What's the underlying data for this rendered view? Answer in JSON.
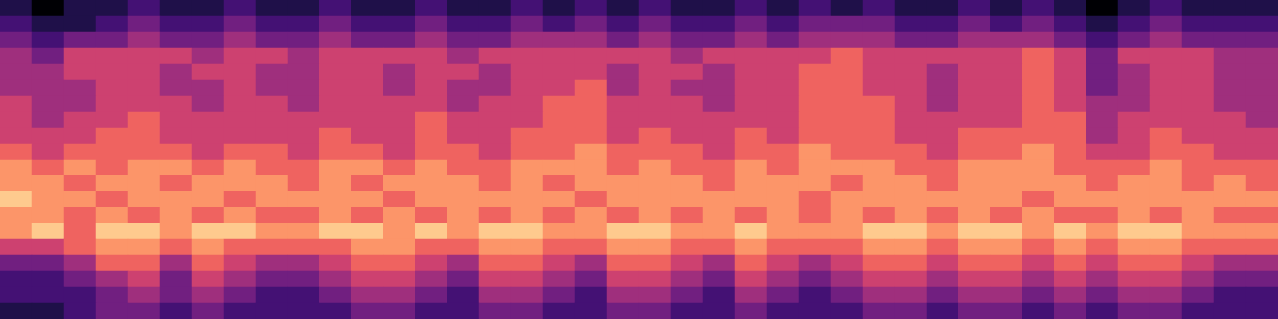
{
  "chart_data": {
    "type": "heatmap",
    "tick_labels": false,
    "value_range": [
      0,
      9
    ],
    "cells": [
      [
        1,
        0,
        1,
        1,
        2,
        1,
        1,
        2,
        1,
        1,
        2,
        1,
        1,
        2,
        1,
        1,
        2,
        1,
        2,
        1,
        2,
        1,
        1,
        2,
        1,
        2,
        1,
        2,
        1,
        1,
        2,
        1,
        2,
        1,
        0,
        1,
        2,
        1,
        1,
        1
      ],
      [
        2,
        1,
        1,
        2,
        3,
        2,
        2,
        3,
        2,
        2,
        3,
        2,
        2,
        3,
        2,
        2,
        3,
        2,
        3,
        2,
        3,
        2,
        2,
        3,
        2,
        3,
        3,
        3,
        2,
        2,
        3,
        2,
        3,
        2,
        1,
        2,
        3,
        2,
        2,
        2
      ],
      [
        3,
        2,
        3,
        3,
        4,
        3,
        3,
        4,
        3,
        3,
        4,
        3,
        3,
        4,
        3,
        3,
        4,
        4,
        4,
        3,
        4,
        3,
        3,
        4,
        3,
        4,
        4,
        4,
        3,
        3,
        4,
        4,
        4,
        3,
        2,
        3,
        4,
        3,
        3,
        3
      ],
      [
        4,
        3,
        5,
        5,
        5,
        5,
        4,
        5,
        5,
        4,
        5,
        5,
        5,
        5,
        4,
        5,
        5,
        5,
        5,
        5,
        5,
        4,
        5,
        5,
        5,
        5,
        6,
        5,
        5,
        5,
        5,
        5,
        6,
        5,
        3,
        5,
        5,
        5,
        4,
        4
      ],
      [
        4,
        4,
        5,
        5,
        5,
        4,
        5,
        5,
        4,
        4,
        5,
        5,
        4,
        5,
        5,
        4,
        5,
        5,
        5,
        4,
        5,
        5,
        4,
        5,
        5,
        6,
        6,
        5,
        5,
        4,
        5,
        5,
        6,
        5,
        3,
        4,
        5,
        5,
        4,
        4
      ],
      [
        4,
        4,
        4,
        5,
        5,
        4,
        4,
        5,
        4,
        4,
        5,
        5,
        4,
        5,
        4,
        4,
        5,
        5,
        6,
        4,
        5,
        4,
        4,
        5,
        5,
        6,
        6,
        5,
        5,
        4,
        5,
        5,
        6,
        5,
        3,
        4,
        5,
        5,
        4,
        4
      ],
      [
        5,
        4,
        4,
        5,
        5,
        5,
        4,
        5,
        5,
        4,
        5,
        5,
        5,
        5,
        4,
        5,
        5,
        6,
        6,
        5,
        5,
        5,
        4,
        5,
        5,
        6,
        6,
        6,
        5,
        4,
        5,
        5,
        6,
        5,
        4,
        4,
        5,
        5,
        4,
        4
      ],
      [
        5,
        4,
        5,
        5,
        6,
        5,
        5,
        5,
        5,
        5,
        5,
        5,
        5,
        6,
        5,
        5,
        5,
        6,
        6,
        5,
        5,
        5,
        5,
        5,
        5,
        6,
        6,
        6,
        5,
        5,
        5,
        5,
        6,
        6,
        4,
        5,
        5,
        5,
        5,
        4
      ],
      [
        5,
        5,
        5,
        6,
        6,
        5,
        5,
        5,
        5,
        5,
        6,
        5,
        5,
        6,
        5,
        5,
        6,
        6,
        6,
        5,
        6,
        5,
        5,
        6,
        5,
        6,
        6,
        6,
        5,
        5,
        6,
        6,
        6,
        6,
        4,
        5,
        6,
        5,
        5,
        5
      ],
      [
        6,
        5,
        6,
        6,
        6,
        6,
        5,
        6,
        6,
        5,
        6,
        6,
        5,
        6,
        6,
        5,
        6,
        6,
        7,
        6,
        6,
        6,
        5,
        6,
        6,
        7,
        6,
        6,
        6,
        5,
        6,
        6,
        7,
        6,
        5,
        5,
        6,
        6,
        5,
        5
      ],
      [
        7,
        6,
        7,
        6,
        7,
        7,
        6,
        7,
        6,
        6,
        7,
        7,
        6,
        7,
        6,
        6,
        7,
        7,
        7,
        6,
        7,
        6,
        6,
        7,
        6,
        7,
        7,
        7,
        6,
        6,
        7,
        7,
        7,
        6,
        6,
        6,
        7,
        6,
        6,
        6
      ],
      [
        7,
        7,
        6,
        7,
        7,
        6,
        7,
        7,
        7,
        6,
        7,
        6,
        7,
        7,
        7,
        6,
        7,
        6,
        7,
        7,
        7,
        7,
        6,
        7,
        7,
        7,
        6,
        7,
        7,
        6,
        7,
        7,
        7,
        7,
        6,
        7,
        7,
        6,
        7,
        6
      ],
      [
        8,
        7,
        7,
        6,
        7,
        7,
        7,
        6,
        7,
        7,
        7,
        7,
        6,
        7,
        7,
        7,
        7,
        7,
        6,
        7,
        7,
        7,
        7,
        7,
        7,
        6,
        7,
        7,
        7,
        7,
        7,
        7,
        6,
        7,
        7,
        7,
        7,
        7,
        7,
        7
      ],
      [
        7,
        7,
        6,
        7,
        6,
        7,
        6,
        7,
        6,
        6,
        7,
        6,
        7,
        6,
        7,
        6,
        7,
        6,
        7,
        6,
        7,
        6,
        7,
        6,
        7,
        6,
        7,
        6,
        7,
        6,
        7,
        6,
        7,
        6,
        6,
        7,
        6,
        7,
        6,
        6
      ],
      [
        7,
        8,
        6,
        8,
        8,
        7,
        8,
        8,
        7,
        7,
        8,
        8,
        7,
        8,
        7,
        8,
        8,
        7,
        7,
        8,
        8,
        7,
        7,
        8,
        7,
        7,
        7,
        8,
        8,
        7,
        8,
        8,
        7,
        8,
        7,
        8,
        8,
        7,
        7,
        7
      ],
      [
        5,
        5,
        6,
        7,
        7,
        6,
        7,
        6,
        6,
        6,
        6,
        7,
        7,
        6,
        6,
        7,
        7,
        6,
        6,
        7,
        7,
        6,
        6,
        7,
        6,
        6,
        6,
        7,
        7,
        6,
        7,
        7,
        6,
        7,
        6,
        7,
        7,
        6,
        6,
        6
      ],
      [
        3,
        3,
        4,
        6,
        6,
        4,
        6,
        5,
        4,
        4,
        5,
        6,
        6,
        5,
        4,
        6,
        6,
        5,
        4,
        6,
        6,
        5,
        4,
        6,
        5,
        4,
        5,
        6,
        6,
        5,
        6,
        6,
        5,
        6,
        5,
        6,
        6,
        5,
        4,
        4
      ],
      [
        2,
        2,
        3,
        4,
        5,
        3,
        5,
        4,
        3,
        3,
        4,
        5,
        5,
        4,
        3,
        5,
        5,
        4,
        3,
        5,
        5,
        4,
        3,
        5,
        4,
        3,
        4,
        5,
        5,
        4,
        5,
        5,
        4,
        5,
        4,
        5,
        5,
        4,
        3,
        3
      ],
      [
        2,
        2,
        2,
        3,
        4,
        3,
        4,
        3,
        2,
        2,
        3,
        4,
        4,
        3,
        2,
        4,
        4,
        3,
        2,
        4,
        4,
        3,
        2,
        4,
        3,
        2,
        3,
        4,
        4,
        3,
        4,
        4,
        3,
        4,
        3,
        4,
        4,
        3,
        2,
        2
      ],
      [
        1,
        1,
        2,
        3,
        3,
        2,
        3,
        2,
        2,
        2,
        2,
        3,
        3,
        2,
        2,
        3,
        3,
        2,
        2,
        3,
        3,
        2,
        2,
        3,
        2,
        2,
        2,
        3,
        3,
        2,
        3,
        3,
        2,
        3,
        2,
        3,
        3,
        2,
        2,
        2
      ]
    ]
  }
}
